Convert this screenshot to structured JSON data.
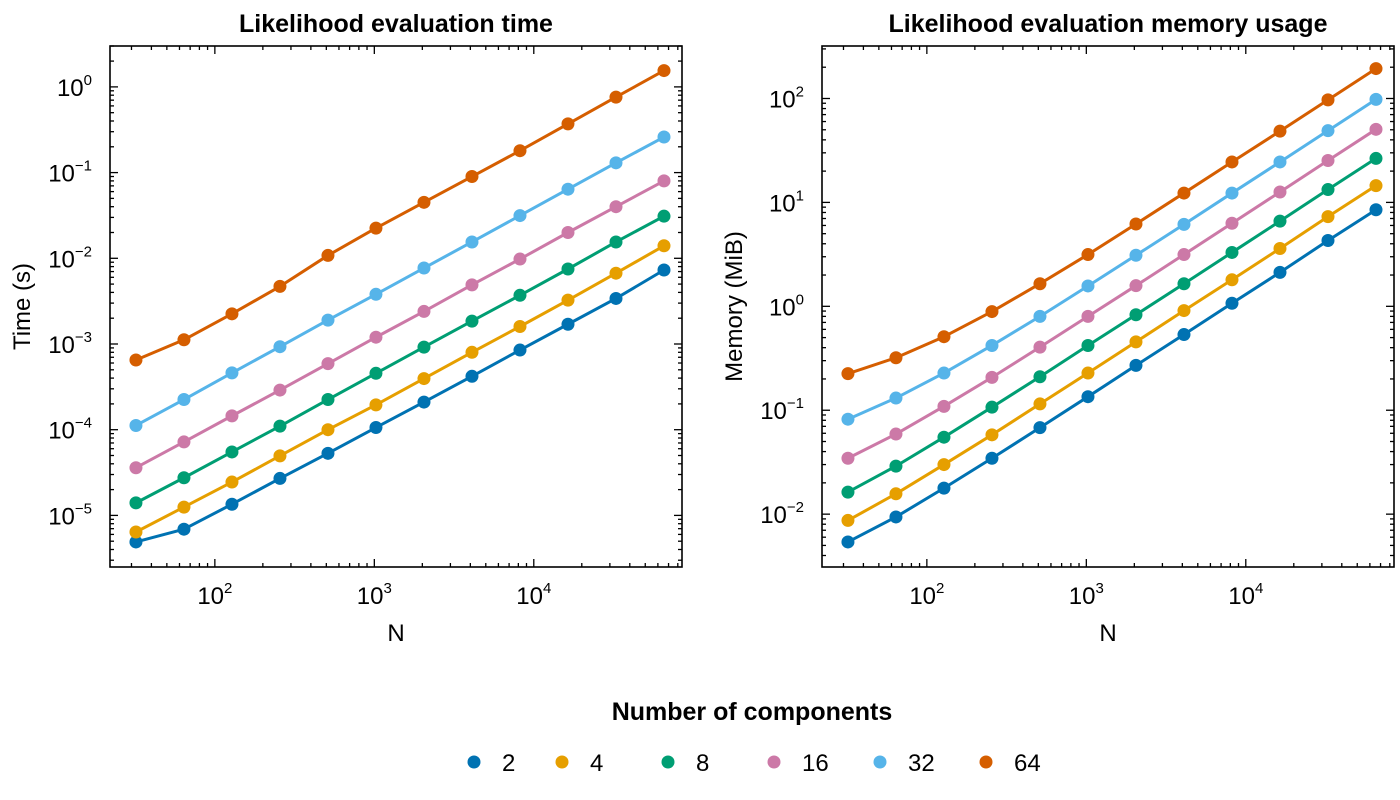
{
  "chart_data": [
    {
      "type": "line",
      "title": "Likelihood evaluation time",
      "xlabel": "N",
      "ylabel": "Time (s)",
      "xscale": "log",
      "yscale": "log",
      "xlim": [
        22,
        85000
      ],
      "ylim": [
        2.5e-06,
        3.0
      ],
      "xticks": [
        {
          "base": "10",
          "exp": "2",
          "value": 100
        },
        {
          "base": "10",
          "exp": "3",
          "value": 1000
        },
        {
          "base": "10",
          "exp": "4",
          "value": 10000
        }
      ],
      "yticks": [
        {
          "base": "10",
          "exp": "−5",
          "value": 1e-05
        },
        {
          "base": "10",
          "exp": "−4",
          "value": 0.0001
        },
        {
          "base": "10",
          "exp": "−3",
          "value": 0.001
        },
        {
          "base": "10",
          "exp": "−2",
          "value": 0.01
        },
        {
          "base": "10",
          "exp": "−1",
          "value": 0.1
        },
        {
          "base": "10",
          "exp": "0",
          "value": 1
        }
      ],
      "x": [
        32,
        64,
        128,
        256,
        512,
        1024,
        2048,
        4096,
        8192,
        16384,
        32768,
        65536
      ],
      "series": [
        {
          "name": "2",
          "color": "#0072B2",
          "values": [
            4.9e-06,
            6.9e-06,
            1.35e-05,
            2.7e-05,
            5.3e-05,
            0.000106,
            0.00021,
            0.00042,
            0.00085,
            0.0017,
            0.0034,
            0.0073
          ]
        },
        {
          "name": "4",
          "color": "#E69F00",
          "values": [
            6.4e-06,
            1.25e-05,
            2.45e-05,
            4.95e-05,
            0.0001,
            0.000195,
            0.000395,
            0.0008,
            0.0016,
            0.00325,
            0.0067,
            0.014
          ]
        },
        {
          "name": "8",
          "color": "#009E73",
          "values": [
            1.4e-05,
            2.75e-05,
            5.5e-05,
            0.00011,
            0.000225,
            0.000455,
            0.00092,
            0.00185,
            0.0037,
            0.0075,
            0.0155,
            0.031
          ]
        },
        {
          "name": "16",
          "color": "#CC79A7",
          "values": [
            3.6e-05,
            7.2e-05,
            0.000145,
            0.00029,
            0.00059,
            0.0012,
            0.0024,
            0.0049,
            0.0098,
            0.02,
            0.04,
            0.08
          ]
        },
        {
          "name": "32",
          "color": "#56B4E9",
          "values": [
            0.000112,
            0.000225,
            0.00046,
            0.00093,
            0.0019,
            0.0038,
            0.0077,
            0.0155,
            0.0315,
            0.064,
            0.13,
            0.26
          ]
        },
        {
          "name": "64",
          "color": "#D55E00",
          "values": [
            0.00065,
            0.00112,
            0.00225,
            0.0047,
            0.0108,
            0.0225,
            0.045,
            0.09,
            0.18,
            0.37,
            0.76,
            1.55
          ]
        }
      ]
    },
    {
      "type": "line",
      "title": "Likelihood evaluation memory usage",
      "xlabel": "N",
      "ylabel": "Memory (MiB)",
      "xscale": "log",
      "yscale": "log",
      "xlim": [
        22,
        85000
      ],
      "ylim": [
        0.0031,
        320
      ],
      "xticks": [
        {
          "base": "10",
          "exp": "2",
          "value": 100
        },
        {
          "base": "10",
          "exp": "3",
          "value": 1000
        },
        {
          "base": "10",
          "exp": "4",
          "value": 10000
        }
      ],
      "yticks": [
        {
          "base": "10",
          "exp": "−2",
          "value": 0.01
        },
        {
          "base": "10",
          "exp": "−1",
          "value": 0.1
        },
        {
          "base": "10",
          "exp": "0",
          "value": 1
        },
        {
          "base": "10",
          "exp": "1",
          "value": 10
        },
        {
          "base": "10",
          "exp": "2",
          "value": 100
        }
      ],
      "x": [
        32,
        64,
        128,
        256,
        512,
        1024,
        2048,
        4096,
        8192,
        16384,
        32768,
        65536
      ],
      "series": [
        {
          "name": "2",
          "color": "#0072B2",
          "values": [
            0.0054,
            0.0094,
            0.0178,
            0.0345,
            0.068,
            0.135,
            0.27,
            0.535,
            1.07,
            2.12,
            4.3,
            8.5
          ]
        },
        {
          "name": "4",
          "color": "#E69F00",
          "values": [
            0.0087,
            0.0157,
            0.03,
            0.058,
            0.115,
            0.228,
            0.455,
            0.91,
            1.8,
            3.6,
            7.3,
            14.5
          ]
        },
        {
          "name": "8",
          "color": "#009E73",
          "values": [
            0.0163,
            0.029,
            0.055,
            0.107,
            0.21,
            0.42,
            0.83,
            1.65,
            3.3,
            6.6,
            13.3,
            26.5
          ]
        },
        {
          "name": "16",
          "color": "#CC79A7",
          "values": [
            0.0345,
            0.059,
            0.109,
            0.207,
            0.405,
            0.8,
            1.58,
            3.15,
            6.3,
            12.6,
            25.3,
            50.5
          ]
        },
        {
          "name": "32",
          "color": "#56B4E9",
          "values": [
            0.082,
            0.131,
            0.228,
            0.42,
            0.8,
            1.57,
            3.1,
            6.15,
            12.3,
            24.5,
            49.0,
            98.0
          ]
        },
        {
          "name": "64",
          "color": "#D55E00",
          "values": [
            0.225,
            0.32,
            0.51,
            0.89,
            1.65,
            3.15,
            6.2,
            12.3,
            24.5,
            48.5,
            97.0,
            194.0
          ]
        }
      ]
    }
  ],
  "legend": {
    "title": "Number of components",
    "position": "bottom-center"
  }
}
